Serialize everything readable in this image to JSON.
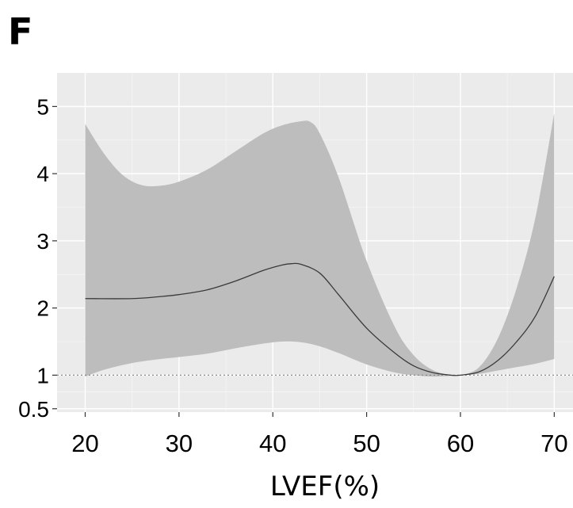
{
  "panel_label": "F",
  "chart_data": {
    "type": "line",
    "title": "",
    "xlabel": "LVEF(%)",
    "ylabel": "",
    "xlim": [
      17,
      72
    ],
    "ylim": [
      0.45,
      5.5
    ],
    "x_ticks": [
      20,
      30,
      40,
      50,
      60,
      70
    ],
    "x_tick_labels": [
      "20",
      "30",
      "40",
      "50",
      "60",
      "70"
    ],
    "y_ticks": [
      0.5,
      1,
      2,
      3,
      4,
      5
    ],
    "y_tick_labels": [
      "0.5",
      "1",
      "2",
      "3",
      "4",
      "5"
    ],
    "grid": true,
    "reference_line": {
      "y": 1,
      "style": "dotted"
    },
    "series": [
      {
        "role": "estimate",
        "x": [
          20,
          25,
          28,
          30,
          33,
          36,
          39,
          41,
          42,
          43,
          45,
          47,
          50,
          53,
          55,
          57,
          59,
          60,
          62,
          64,
          66,
          68,
          70
        ],
        "y": [
          2.14,
          2.14,
          2.17,
          2.2,
          2.27,
          2.4,
          2.56,
          2.64,
          2.66,
          2.65,
          2.52,
          2.2,
          1.7,
          1.33,
          1.14,
          1.04,
          1.0,
          1.0,
          1.05,
          1.22,
          1.5,
          1.88,
          2.47
        ]
      },
      {
        "role": "lower_ci",
        "x": [
          20,
          22,
          25,
          28,
          30,
          33,
          36,
          39,
          41,
          43,
          45,
          47,
          50,
          53,
          55,
          57,
          59,
          60,
          62,
          64,
          66,
          68,
          70
        ],
        "y": [
          0.98,
          1.08,
          1.18,
          1.24,
          1.27,
          1.32,
          1.4,
          1.47,
          1.5,
          1.49,
          1.43,
          1.33,
          1.16,
          1.04,
          1.0,
          0.98,
          0.99,
          1.0,
          1.02,
          1.07,
          1.12,
          1.17,
          1.24
        ]
      },
      {
        "role": "upper_ci",
        "x": [
          20,
          22,
          24,
          26,
          28,
          30,
          33,
          36,
          39,
          41,
          43,
          44,
          45,
          47,
          50,
          53,
          55,
          57,
          59,
          60,
          62,
          64,
          66,
          68,
          70
        ],
        "y": [
          4.74,
          4.3,
          3.98,
          3.83,
          3.82,
          3.88,
          4.06,
          4.33,
          4.6,
          4.72,
          4.78,
          4.77,
          4.6,
          3.95,
          2.7,
          1.72,
          1.3,
          1.08,
          1.0,
          1.0,
          1.12,
          1.55,
          2.3,
          3.35,
          4.9
        ]
      }
    ],
    "colors": {
      "panel_bg": "#ebebeb",
      "grid_major": "#ffffff",
      "grid_minor": "#f5f5f5",
      "ci_fill": "#bdbdbd",
      "line": "#3a3a3a",
      "reference": "#8a8a8a"
    }
  }
}
